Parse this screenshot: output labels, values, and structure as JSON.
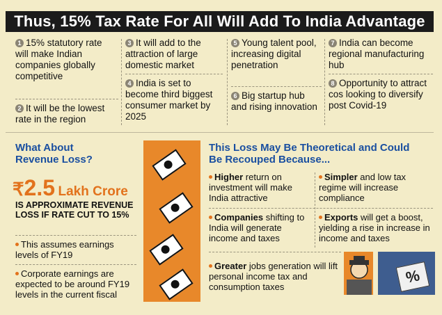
{
  "title": "Thus, 15% Tax Rate For All Will Add To India Advantage",
  "points": [
    {
      "num": "1",
      "text": "15% statutory rate will make Indian companies globally competitive"
    },
    {
      "num": "2",
      "text": "It will be the lowest rate in the region"
    },
    {
      "num": "3",
      "text": "It will add to the attraction of large domestic market"
    },
    {
      "num": "4",
      "text": "India is set to become third biggest consumer market by 2025"
    },
    {
      "num": "5",
      "text": "Young talent pool, increasing digital penetration"
    },
    {
      "num": "6",
      "text": "Big startup hub and rising innovation"
    },
    {
      "num": "7",
      "text": "India can become regional manufacturing hub"
    },
    {
      "num": "8",
      "text": "Opportunity to attract cos looking to diversify post Covid-19"
    }
  ],
  "revenue": {
    "heading": "What About Revenue Loss?",
    "rupee": "₹",
    "amount": "2.5",
    "unit": "Lakh Crore",
    "description": "IS APPROXIMATE REVENUE LOSS IF RATE CUT TO 15%",
    "bullet1": "This assumes earnings levels of FY19",
    "bullet2": "Corporate earnings are expected to be around FY19 levels in the current fiscal"
  },
  "recoup": {
    "heading": "This Loss May Be Theoretical and Could Be Recouped Because...",
    "items": [
      {
        "bold": "Higher",
        "rest": " return on investment will make India attractive"
      },
      {
        "bold": "Simpler",
        "rest": " and low tax regime will increase compliance"
      },
      {
        "bold": "Companies",
        "rest": " shifting to India will generate income and taxes"
      },
      {
        "bold": "Exports",
        "rest": " will get a boost, yielding a rise in increase in income and taxes"
      },
      {
        "bold": "Greater",
        "rest": " jobs generation will lift personal income tax and consumption taxes"
      }
    ]
  },
  "pct_symbol": "%",
  "colors": {
    "title_bg": "#1b1b1b",
    "accent_orange": "#e2721c",
    "heading_blue": "#1a4fa0",
    "background": "#f3ecc8"
  }
}
